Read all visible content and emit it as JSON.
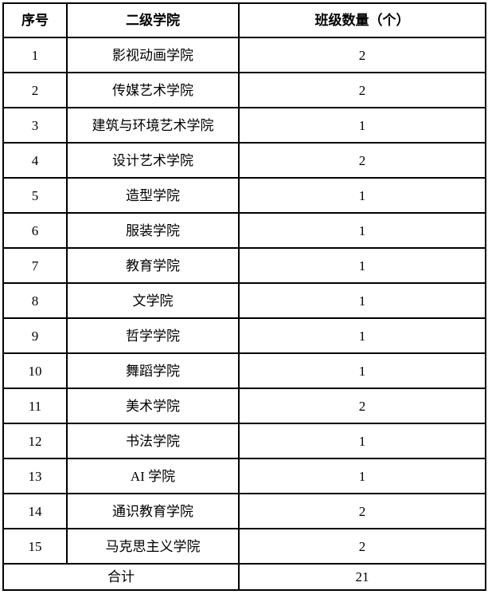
{
  "table": {
    "headers": [
      "序号",
      "二级学院",
      "班级数量（个）"
    ],
    "rows": [
      [
        "1",
        "影视动画学院",
        "2"
      ],
      [
        "2",
        "传媒艺术学院",
        "2"
      ],
      [
        "3",
        "建筑与环境艺术学院",
        "1"
      ],
      [
        "4",
        "设计艺术学院",
        "2"
      ],
      [
        "5",
        "造型学院",
        "1"
      ],
      [
        "6",
        "服装学院",
        "1"
      ],
      [
        "7",
        "教育学院",
        "1"
      ],
      [
        "8",
        "文学院",
        "1"
      ],
      [
        "9",
        "哲学学院",
        "1"
      ],
      [
        "10",
        "舞蹈学院",
        "1"
      ],
      [
        "11",
        "美术学院",
        "2"
      ],
      [
        "12",
        "书法学院",
        "1"
      ],
      [
        "13",
        "AI 学院",
        "1"
      ],
      [
        "14",
        "通识教育学院",
        "2"
      ],
      [
        "15",
        "马克思主义学院",
        "2"
      ]
    ],
    "footer": {
      "label": "合计",
      "total": "21"
    },
    "colors": {
      "border": "#000000",
      "text": "#000000",
      "background": "#ffffff"
    }
  }
}
